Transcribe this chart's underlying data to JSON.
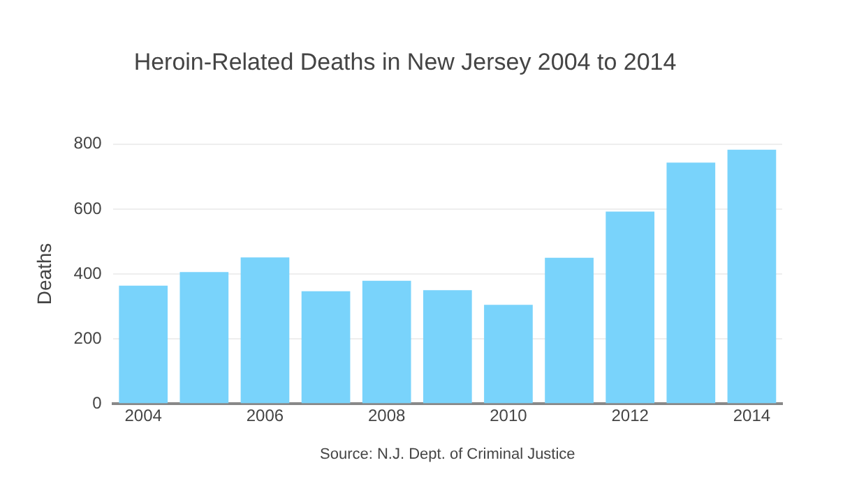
{
  "chart_data": {
    "type": "bar",
    "title": "Heroin-Related Deaths in New Jersey 2004 to 2014",
    "ylabel": "Deaths",
    "x": [
      2004,
      2005,
      2006,
      2007,
      2008,
      2009,
      2010,
      2011,
      2012,
      2013,
      2014
    ],
    "values": [
      364,
      406,
      451,
      347,
      379,
      350,
      305,
      450,
      592,
      743,
      783
    ],
    "color": "#79d3fb",
    "xlim": [
      2003.5,
      2014.5
    ],
    "xticks": [
      2004,
      2006,
      2008,
      2010,
      2012,
      2014
    ],
    "ylim": [
      0,
      800
    ],
    "yticks": [
      0,
      200,
      400,
      600,
      800
    ],
    "grid": "y",
    "legend": false,
    "annotations": [
      "Source: N.J. Dept. of Criminal Justice"
    ]
  }
}
